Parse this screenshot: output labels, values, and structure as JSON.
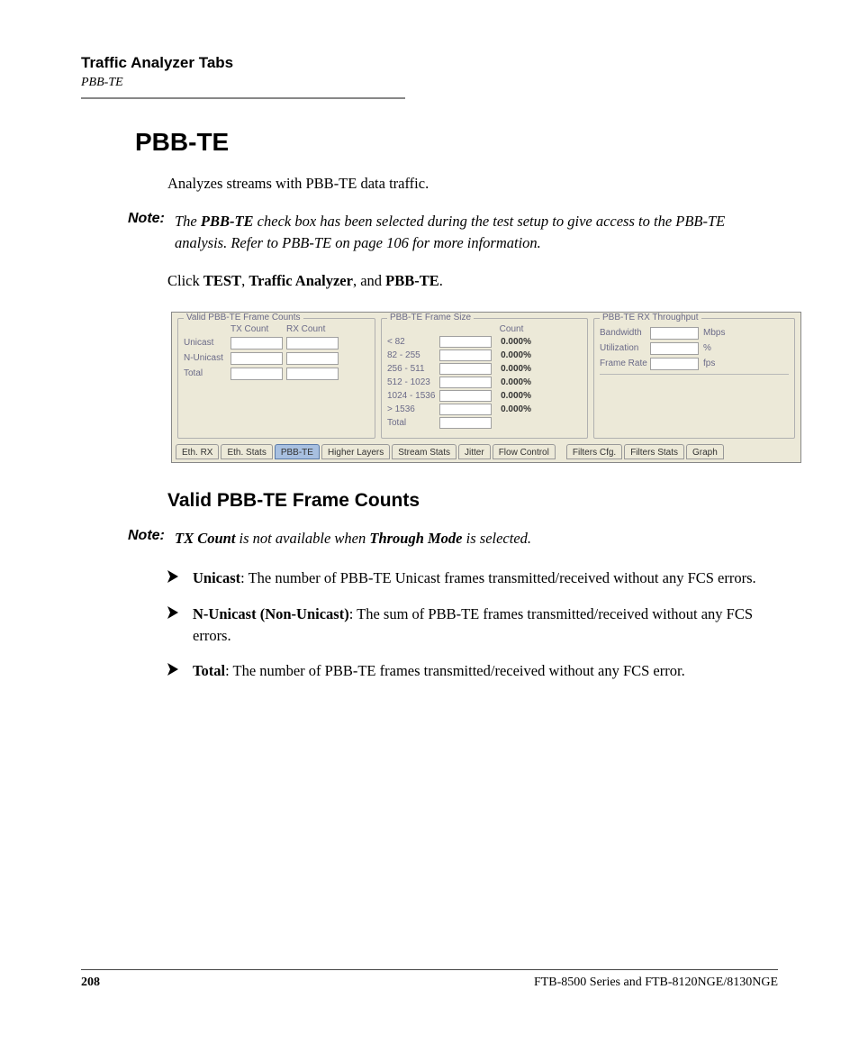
{
  "header": {
    "title": "Traffic Analyzer Tabs",
    "subtitle": "PBB-TE"
  },
  "main": {
    "heading": "PBB-TE",
    "intro": "Analyzes streams with PBB-TE data traffic.",
    "note1_prefix": "Note:",
    "note1_pre": "The ",
    "note1_bold": "PBB-TE",
    "note1_post": " check box has been selected during the test setup to give access to the PBB-TE analysis. Refer to PBB-TE on page 106 for more information.",
    "click_pre": "Click ",
    "click_b1": "TEST",
    "click_sep1": ", ",
    "click_b2": "Traffic Analyzer",
    "click_sep2": ", and ",
    "click_b3": "PBB-TE",
    "click_post": "."
  },
  "panel": {
    "frame_counts": {
      "title": "Valid PBB-TE Frame Counts",
      "col_tx": "TX Count",
      "col_rx": "RX Count",
      "rows": [
        "Unicast",
        "N-Unicast",
        "Total"
      ]
    },
    "frame_size": {
      "title": "PBB-TE Frame Size",
      "col": "Count",
      "rows": [
        {
          "label": "< 82",
          "pct": "0.000%"
        },
        {
          "label": "82 - 255",
          "pct": "0.000%"
        },
        {
          "label": "256 - 511",
          "pct": "0.000%"
        },
        {
          "label": "512 - 1023",
          "pct": "0.000%"
        },
        {
          "label": "1024 - 1536",
          "pct": "0.000%"
        },
        {
          "label": "> 1536",
          "pct": "0.000%"
        },
        {
          "label": "Total",
          "pct": ""
        }
      ]
    },
    "throughput": {
      "title": "PBB-TE RX Throughput",
      "rows": [
        {
          "label": "Bandwidth",
          "unit": "Mbps"
        },
        {
          "label": "Utilization",
          "unit": "%"
        },
        {
          "label": "Frame Rate",
          "unit": "fps"
        }
      ]
    },
    "tabs": [
      "Eth. RX",
      "Eth. Stats",
      "PBB-TE",
      "Higher Layers",
      "Stream Stats",
      "Jitter",
      "Flow Control",
      "Filters Cfg.",
      "Filters Stats",
      "Graph"
    ],
    "active_tab": 2
  },
  "section2": {
    "heading": "Valid PBB-TE Frame Counts",
    "note_prefix": "Note:",
    "note_b1": "TX Count",
    "note_mid": " is not available when ",
    "note_b2": "Through Mode",
    "note_post": " is selected.",
    "items": [
      {
        "bold": "Unicast",
        "text": ": The number of PBB-TE Unicast frames transmitted/received without any FCS errors."
      },
      {
        "bold": "N-Unicast (Non-Unicast)",
        "text": ": The sum of PBB-TE frames transmitted/received without any FCS errors."
      },
      {
        "bold": "Total",
        "text": ": The number of PBB-TE frames transmitted/received without any FCS error."
      }
    ]
  },
  "footer": {
    "page": "208",
    "product": "FTB-8500 Series and FTB-8120NGE/8130NGE"
  },
  "colors": {
    "panel_bg": "#ece9d8",
    "active_tab_bg": "#a8c0e0"
  }
}
